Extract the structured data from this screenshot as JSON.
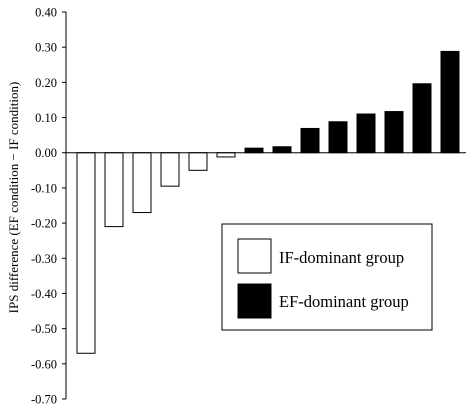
{
  "chart_data": {
    "type": "bar",
    "title": "",
    "xlabel": "",
    "ylabel": "IPS difference (EF condition − IF condition)",
    "ylim": [
      -0.7,
      0.4
    ],
    "yticks": [
      "0.40",
      "0.30",
      "0.20",
      "0.10",
      "0.00",
      "-0.10",
      "-0.20",
      "-0.30",
      "-0.40",
      "-0.50",
      "-0.60",
      "-0.70"
    ],
    "ytick_values": [
      0.4,
      0.3,
      0.2,
      0.1,
      0.0,
      -0.1,
      -0.2,
      -0.3,
      -0.4,
      -0.5,
      -0.6,
      -0.7
    ],
    "grid": false,
    "legend_position": "lower-right",
    "series": [
      {
        "name": "IF-dominant group",
        "color": "#ffffff",
        "edge": "#000000",
        "values": [
          -0.57,
          -0.21,
          -0.17,
          -0.095,
          -0.05,
          -0.012
        ]
      },
      {
        "name": "EF-dominant group",
        "color": "#000000",
        "edge": "#000000",
        "values": [
          0.013,
          0.017,
          0.069,
          0.088,
          0.11,
          0.117,
          0.196,
          0.288
        ]
      }
    ]
  }
}
